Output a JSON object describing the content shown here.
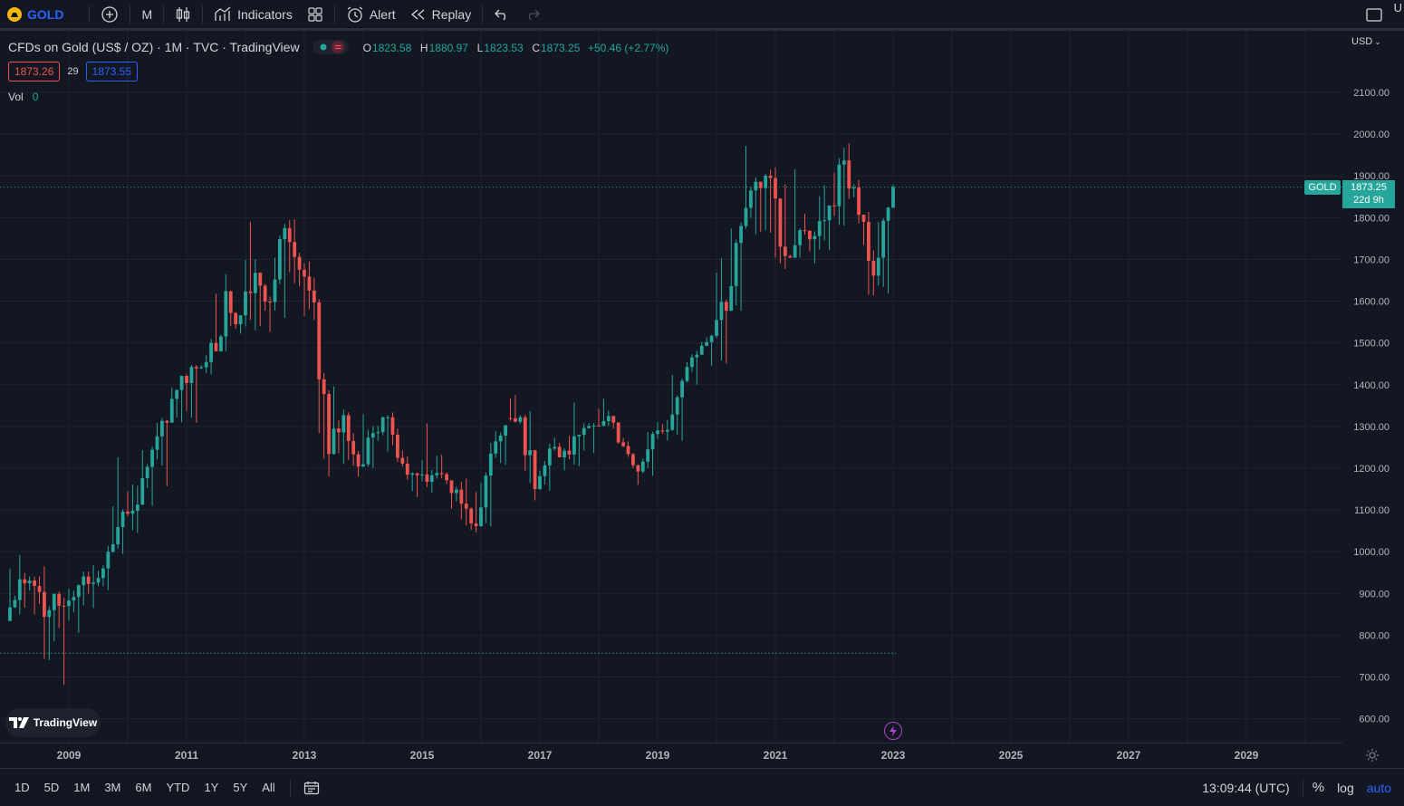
{
  "toolbar": {
    "symbol": "GOLD",
    "interval": "M",
    "indicators_label": "Indicators",
    "alert_label": "Alert",
    "replay_label": "Replay",
    "right_letter": "U"
  },
  "legend": {
    "title": "CFDs on Gold (US$ / OZ) · 1M · TVC · TradingView",
    "o_key": "O",
    "o_val": "1823.58",
    "h_key": "H",
    "h_val": "1880.97",
    "l_key": "L",
    "l_val": "1823.53",
    "c_key": "C",
    "c_val": "1873.25",
    "change": "+50.46 (+2.77%)",
    "bid": "1873.26",
    "spread": "29",
    "ask": "1873.55",
    "vol_label": "Vol",
    "vol_value": "0"
  },
  "price_axis": {
    "currency": "USD",
    "last_symbol": "GOLD",
    "last_price": "1873.25",
    "countdown": "22d 9h"
  },
  "bottom_bar": {
    "ranges": [
      "1D",
      "5D",
      "1M",
      "3M",
      "6M",
      "YTD",
      "1Y",
      "5Y",
      "All"
    ],
    "time": "13:09:44 (UTC)",
    "percent_label": "%",
    "log_label": "log",
    "auto_label": "auto"
  },
  "watermark": {
    "text": "TradingView"
  },
  "colors": {
    "up": "#26a69a",
    "down": "#ef5350",
    "accent": "#2962ff",
    "bg": "#131722",
    "grid": "#1f2330"
  },
  "chart_data": {
    "type": "candlestick",
    "interval": "monthly",
    "y_ticks": [
      600,
      700,
      800,
      900,
      1000,
      1100,
      1200,
      1300,
      1400,
      1500,
      1600,
      1700,
      1800,
      1900,
      2000,
      2100
    ],
    "y_tick_labels": [
      "600.00",
      "700.00",
      "800.00",
      "900.00",
      "1000.00",
      "1100.00",
      "1200.00",
      "1300.00",
      "1400.00",
      "1500.00",
      "1600.00",
      "1700.00",
      "1800.00",
      "1900.00",
      "2000.00",
      "2100.00"
    ],
    "x_tick_labels": [
      "2009",
      "2011",
      "2013",
      "2015",
      "2017",
      "2019",
      "2021",
      "2023",
      "2025",
      "2027",
      "2029"
    ],
    "last_price": 1873.25,
    "dashed_level": 757,
    "quarterly_ohlc": [
      [
        2008.0,
        834,
        1033,
        850,
        934
      ],
      [
        2008.25,
        934,
        988,
        850,
        918
      ],
      [
        2008.5,
        918,
        965,
        740,
        860
      ],
      [
        2008.75,
        860,
        905,
        681,
        870
      ],
      [
        2009.0,
        870,
        1006,
        806,
        920
      ],
      [
        2009.25,
        920,
        990,
        865,
        926
      ],
      [
        2009.5,
        926,
        1015,
        908,
        1000
      ],
      [
        2009.75,
        1000,
        1226,
        995,
        1096
      ],
      [
        2010.0,
        1096,
        1161,
        1045,
        1113
      ],
      [
        2010.25,
        1113,
        1266,
        1110,
        1244
      ],
      [
        2010.5,
        1244,
        1320,
        1157,
        1309
      ],
      [
        2010.75,
        1309,
        1424,
        1310,
        1421
      ],
      [
        2011.0,
        1421,
        1447,
        1309,
        1439
      ],
      [
        2011.25,
        1439,
        1577,
        1425,
        1500
      ],
      [
        2011.5,
        1500,
        1921,
        1480,
        1624
      ],
      [
        2011.75,
        1624,
        1803,
        1522,
        1566
      ],
      [
        2012.0,
        1566,
        1790,
        1530,
        1668
      ],
      [
        2012.25,
        1668,
        1680,
        1527,
        1598
      ],
      [
        2012.5,
        1598,
        1790,
        1560,
        1775
      ],
      [
        2012.75,
        1775,
        1796,
        1635,
        1675
      ],
      [
        2013.0,
        1675,
        1695,
        1555,
        1597
      ],
      [
        2013.25,
        1597,
        1605,
        1180,
        1234
      ],
      [
        2013.5,
        1234,
        1434,
        1210,
        1327
      ],
      [
        2013.75,
        1327,
        1361,
        1180,
        1204
      ],
      [
        2014.0,
        1204,
        1392,
        1200,
        1284
      ],
      [
        2014.25,
        1284,
        1331,
        1240,
        1322
      ],
      [
        2014.5,
        1322,
        1345,
        1204,
        1211
      ],
      [
        2014.75,
        1211,
        1255,
        1131,
        1183
      ],
      [
        2015.0,
        1183,
        1307,
        1142,
        1183
      ],
      [
        2015.25,
        1183,
        1232,
        1162,
        1171
      ],
      [
        2015.5,
        1171,
        1170,
        1077,
        1115
      ],
      [
        2015.75,
        1115,
        1191,
        1046,
        1061
      ],
      [
        2016.0,
        1061,
        1284,
        1061,
        1235
      ],
      [
        2016.25,
        1235,
        1303,
        1208,
        1320
      ],
      [
        2016.5,
        1320,
        1375,
        1306,
        1322
      ],
      [
        2016.75,
        1322,
        1337,
        1123,
        1150
      ],
      [
        2017.0,
        1150,
        1264,
        1146,
        1247
      ],
      [
        2017.25,
        1247,
        1296,
        1195,
        1242
      ],
      [
        2017.5,
        1242,
        1357,
        1205,
        1280
      ],
      [
        2017.75,
        1280,
        1308,
        1236,
        1302
      ],
      [
        2018.0,
        1302,
        1366,
        1301,
        1325
      ],
      [
        2018.25,
        1325,
        1365,
        1250,
        1253
      ],
      [
        2018.5,
        1253,
        1265,
        1160,
        1192
      ],
      [
        2018.75,
        1192,
        1287,
        1182,
        1282
      ],
      [
        2019.0,
        1282,
        1346,
        1266,
        1292
      ],
      [
        2019.25,
        1292,
        1438,
        1266,
        1409
      ],
      [
        2019.5,
        1409,
        1557,
        1400,
        1472
      ],
      [
        2019.75,
        1472,
        1523,
        1445,
        1517
      ],
      [
        2020.0,
        1517,
        1703,
        1451,
        1577
      ],
      [
        2020.25,
        1577,
        1788,
        1577,
        1780
      ],
      [
        2020.5,
        1780,
        2075,
        1760,
        1886
      ],
      [
        2020.75,
        1886,
        1965,
        1764,
        1895
      ],
      [
        2021.0,
        1895,
        1959,
        1677,
        1708
      ],
      [
        2021.25,
        1708,
        1916,
        1704,
        1770
      ],
      [
        2021.5,
        1770,
        1834,
        1690,
        1756
      ],
      [
        2021.75,
        1756,
        1878,
        1722,
        1829
      ],
      [
        2022.0,
        1829,
        2070,
        1781,
        1937
      ],
      [
        2022.25,
        1937,
        1998,
        1786,
        1807
      ],
      [
        2022.5,
        1807,
        1814,
        1614,
        1661
      ],
      [
        2022.75,
        1661,
        1826,
        1618,
        1824
      ],
      [
        2023.0,
        1823.58,
        1880.97,
        1823.53,
        1873.25
      ]
    ]
  }
}
